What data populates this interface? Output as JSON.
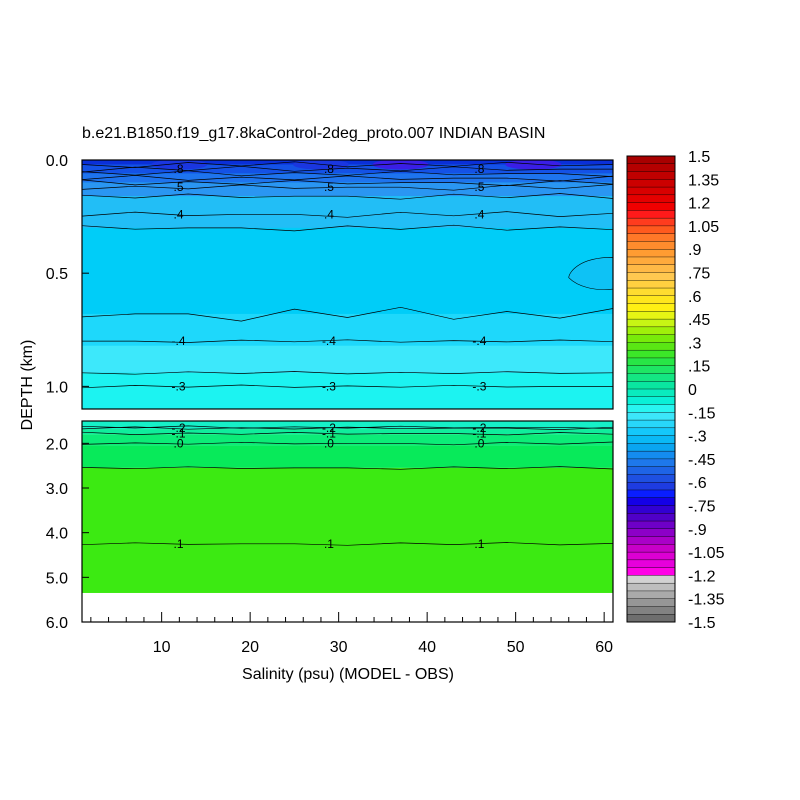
{
  "chart_data": {
    "type": "heatmap",
    "title": "b.e21.B1850.f19_g17.8kaControl-2deg_proto.007 INDIAN BASIN",
    "xlabel": "Salinity (psu) (MODEL - OBS)",
    "ylabel": "DEPTH (km)",
    "x_range": [
      1,
      61
    ],
    "x_ticks": [
      "10",
      "20",
      "30",
      "40",
      "50",
      "60"
    ],
    "x_tick_values": [
      10,
      20,
      30,
      40,
      50,
      60
    ],
    "upper_panel": {
      "depth_range_km": [
        0,
        1.1
      ],
      "y_ticks": [
        "0.0",
        "0.5",
        "1.0"
      ],
      "y_tick_values": [
        0,
        0.5,
        1.0
      ]
    },
    "lower_panel": {
      "depth_range_km": [
        1.5,
        6.0
      ],
      "y_ticks": [
        "2.0",
        "3.0",
        "4.0",
        "5.0",
        "6.0"
      ],
      "y_tick_values": [
        2,
        3,
        4,
        5,
        6
      ],
      "missing_below_km": 5.35
    },
    "contour_levels": [
      {
        "depth_km": 0.04,
        "label": ".8"
      },
      {
        "depth_km": 0.12,
        "label": ".5"
      },
      {
        "depth_km": 0.24,
        "label": ".4"
      },
      {
        "depth_km": 0.8,
        "label": "-.4"
      },
      {
        "depth_km": 1.0,
        "label": "-.3"
      },
      {
        "depth_km": 1.66,
        "label": "-.2"
      },
      {
        "depth_km": 1.78,
        "label": "-.1"
      },
      {
        "depth_km": 2.0,
        "label": ".0"
      },
      {
        "depth_km": 4.25,
        "label": ".1"
      }
    ],
    "label_x_positions": [
      11,
      28,
      45
    ],
    "bands": [
      {
        "from_km": 0.0,
        "to_km": 0.02,
        "color": "#0a2fd8"
      },
      {
        "from_km": 0.02,
        "to_km": 0.06,
        "color": "#1452e6"
      },
      {
        "from_km": 0.06,
        "to_km": 0.1,
        "color": "#1e74ee"
      },
      {
        "from_km": 0.1,
        "to_km": 0.16,
        "color": "#2a96f2"
      },
      {
        "from_km": 0.16,
        "to_km": 0.3,
        "color": "#22bef6"
      },
      {
        "from_km": 0.3,
        "to_km": 0.68,
        "color": "#00cdf8"
      },
      {
        "from_km": 0.68,
        "to_km": 0.82,
        "color": "#1ed8fb"
      },
      {
        "from_km": 0.82,
        "to_km": 0.94,
        "color": "#3de8fb"
      },
      {
        "from_km": 0.94,
        "to_km": 1.1,
        "color": "#1cf3f1"
      },
      {
        "from_km": 1.5,
        "to_km": 1.68,
        "color": "#16f0c8"
      },
      {
        "from_km": 1.68,
        "to_km": 1.8,
        "color": "#10ed9c"
      },
      {
        "from_km": 1.8,
        "to_km": 2.05,
        "color": "#0cec78"
      },
      {
        "from_km": 2.05,
        "to_km": 2.55,
        "color": "#08ea5a"
      },
      {
        "from_km": 2.55,
        "to_km": 5.35,
        "color": "#3cea12"
      }
    ],
    "colorbar": {
      "range": [
        -1.5,
        1.5
      ],
      "step": 0.075,
      "labels": [
        "1.5",
        "1.35",
        "1.2",
        "1.05",
        ".9",
        ".75",
        ".6",
        ".45",
        ".3",
        ".15",
        "0",
        "-.15",
        "-.3",
        "-.45",
        "-.6",
        "-.75",
        "-.9",
        "-1.05",
        "-1.2",
        "-1.35",
        "-1.5"
      ],
      "colors": [
        "#a80000",
        "#b40000",
        "#c00000",
        "#cc0000",
        "#d80000",
        "#e40000",
        "#f00000",
        "#ff1a1a",
        "#ff3c1e",
        "#ff5a1e",
        "#ff7828",
        "#ff8c2d",
        "#ff9c32",
        "#ffaa3c",
        "#ffb946",
        "#ffc850",
        "#ffd040",
        "#ffdc30",
        "#ffe61e",
        "#fff014",
        "#e6f514",
        "#c8f514",
        "#a0f00a",
        "#78eb0a",
        "#5ae614",
        "#3ce628",
        "#28e646",
        "#1ee664",
        "#14e682",
        "#0ae6a0",
        "#0aebbe",
        "#0af0d7",
        "#28f5f0",
        "#3ce6fa",
        "#28d7fa",
        "#14c8fa",
        "#0ab9f5",
        "#0aa5f0",
        "#148cf0",
        "#1e78eb",
        "#1e64e6",
        "#1e50e1",
        "#1e3ce1",
        "#0a1eff",
        "#1400e6",
        "#3200d2",
        "#5000c8",
        "#6e00c8",
        "#8c00c8",
        "#aa00c8",
        "#c800c8",
        "#dc00d2",
        "#e600dc",
        "#ff00e6",
        "#d2d2d2",
        "#bebebe",
        "#aaaaaa",
        "#969696",
        "#828282",
        "#6e6e6e"
      ]
    }
  }
}
